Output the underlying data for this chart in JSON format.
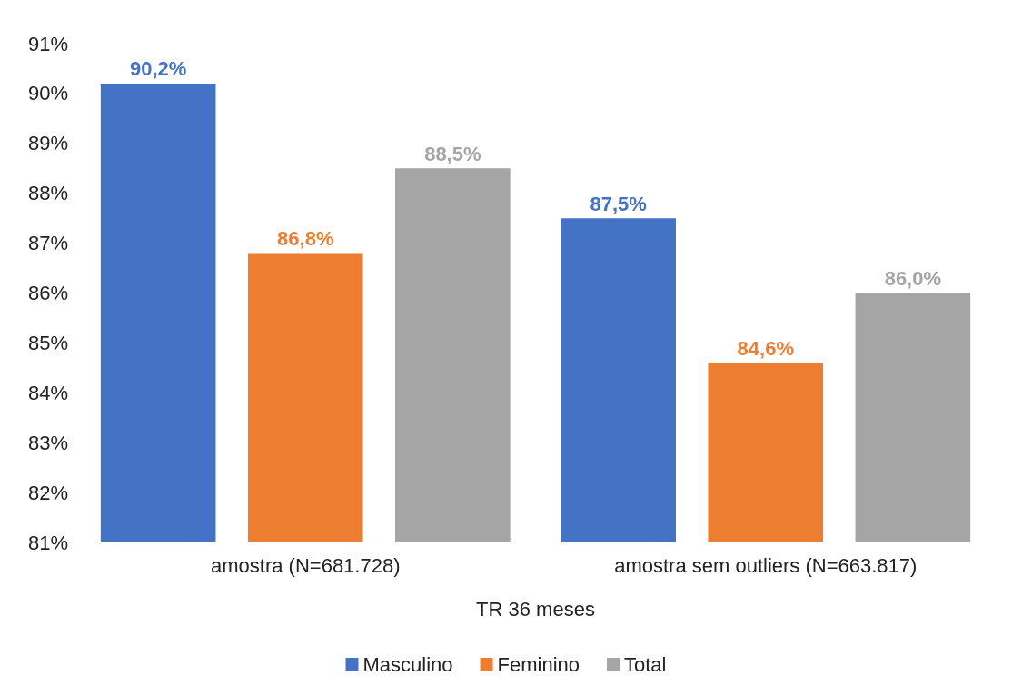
{
  "chart_data": {
    "type": "bar",
    "xlabel": "TR 36 meses",
    "categories": [
      "amostra (N=681.728)",
      "amostra sem outliers (N=663.817)"
    ],
    "series": [
      {
        "name": "Masculino",
        "color": "#4472c4",
        "values": [
          90.2,
          87.5
        ],
        "value_labels": [
          "90,2%",
          "87,5%"
        ]
      },
      {
        "name": "Feminino",
        "color": "#ed7d31",
        "values": [
          86.8,
          84.6
        ],
        "value_labels": [
          "86,8%",
          "84,6%"
        ]
      },
      {
        "name": "Total",
        "color": "#a5a5a5",
        "values": [
          88.5,
          86.0
        ],
        "value_labels": [
          "88,5%",
          "86,0%"
        ]
      }
    ],
    "ylim": [
      81,
      91
    ],
    "yticks": [
      {
        "value": 81,
        "label": "81%"
      },
      {
        "value": 82,
        "label": "82%"
      },
      {
        "value": 83,
        "label": "83%"
      },
      {
        "value": 84,
        "label": "84%"
      },
      {
        "value": 85,
        "label": "85%"
      },
      {
        "value": 86,
        "label": "86%"
      },
      {
        "value": 87,
        "label": "87%"
      },
      {
        "value": 88,
        "label": "88%"
      },
      {
        "value": 89,
        "label": "89%"
      },
      {
        "value": 90,
        "label": "90%"
      },
      {
        "value": 91,
        "label": "91%"
      }
    ],
    "grid": false,
    "legend": "bottom"
  }
}
